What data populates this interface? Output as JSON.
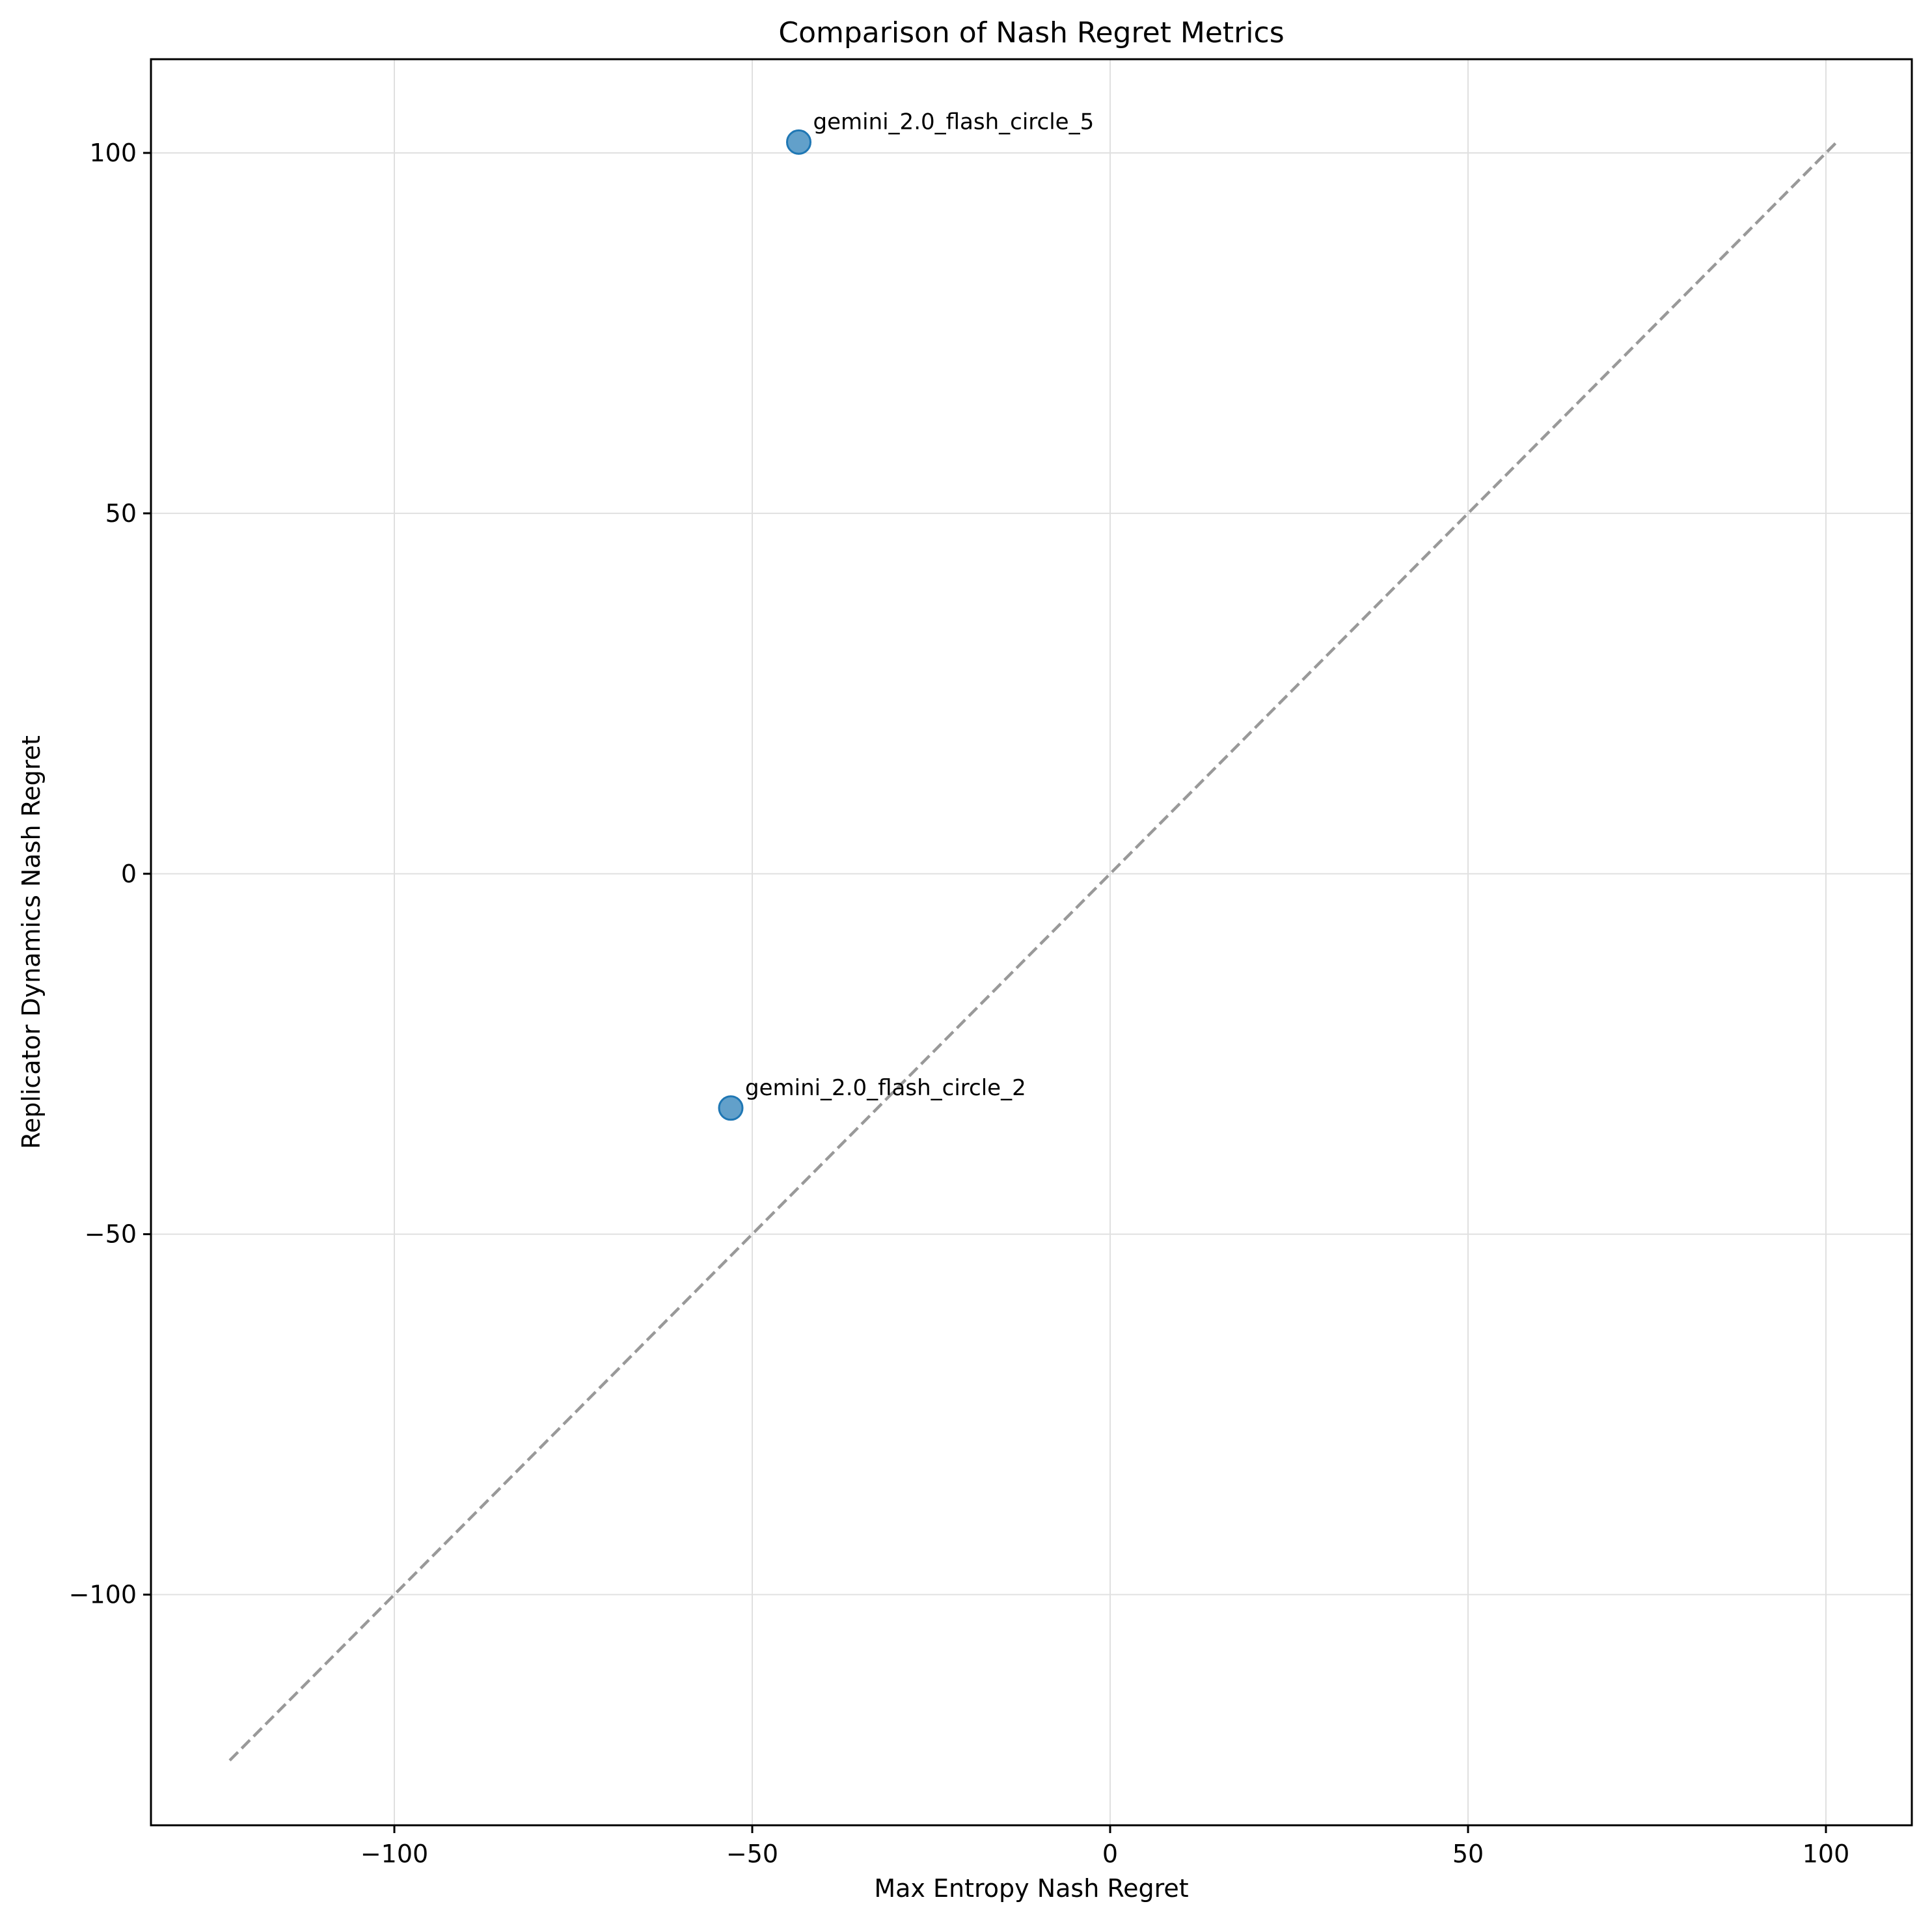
{
  "chart_data": {
    "type": "scatter",
    "title": "Comparison of Nash Regret Metrics",
    "xlabel": "Max Entropy Nash Regret",
    "ylabel": "Replicator Dynamics Nash Regret",
    "xlim": [
      -134,
      112
    ],
    "ylim": [
      -132,
      113
    ],
    "xticks": [
      -100,
      -50,
      0,
      50,
      100
    ],
    "yticks": [
      -100,
      -50,
      0,
      50,
      100
    ],
    "xtick_labels": [
      "−100",
      "−50",
      "0",
      "50",
      "100"
    ],
    "ytick_labels": [
      "−100",
      "−50",
      "0",
      "50",
      "100"
    ],
    "grid": true,
    "points": [
      {
        "label": "gemini_2.0_flash_circle_5",
        "x": -43.5,
        "y": 101.5
      },
      {
        "label": "gemini_2.0_flash_circle_2",
        "x": -53,
        "y": -32.5
      }
    ],
    "reference_line": {
      "style": "dashed",
      "from": [
        -123,
        -123
      ],
      "to": [
        101.5,
        101.5
      ]
    },
    "colors": {
      "point": "#1f77b4",
      "reference_line": "#999999",
      "grid": "#e0e0e0"
    }
  }
}
